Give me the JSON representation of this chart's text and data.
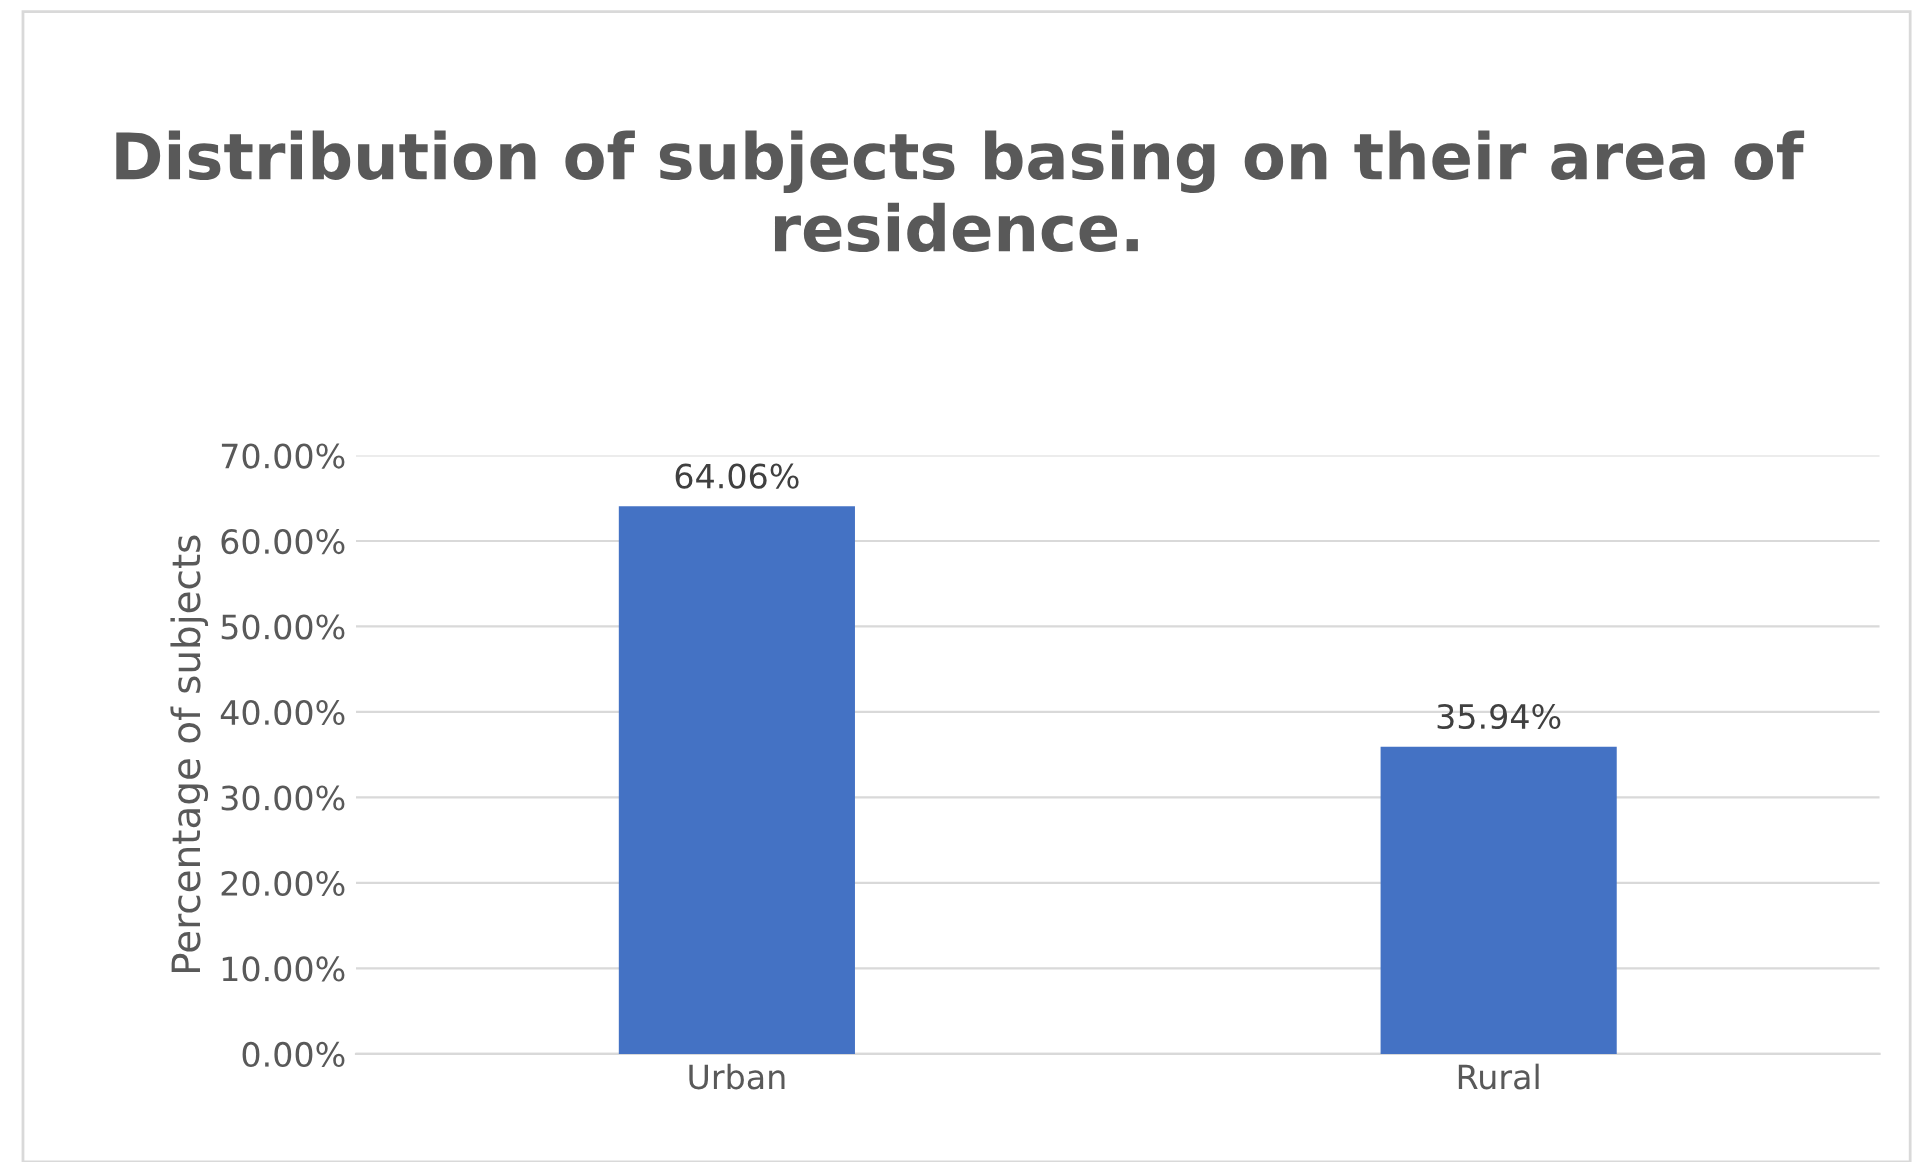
{
  "chart_data": {
    "type": "bar",
    "title": "Distribution of subjects basing on their area of residence.",
    "ylabel": "Percentage of subjects",
    "categories": [
      "Urban",
      "Rural"
    ],
    "values": [
      64.06,
      35.94
    ],
    "color": "#4472c4",
    "value_labels": [
      "64.06%",
      "35.94%"
    ],
    "ylim": [
      0,
      70
    ],
    "yticks": [
      {
        "value": 0,
        "label": "0.00%"
      },
      {
        "value": 10,
        "label": "10.00%"
      },
      {
        "value": 20,
        "label": "20.00%"
      },
      {
        "value": 30,
        "label": "30.00%"
      },
      {
        "value": 40,
        "label": "40.00%"
      },
      {
        "value": 50,
        "label": "50.00%"
      },
      {
        "value": 60,
        "label": "60.00%"
      },
      {
        "value": 70,
        "label": "70.00%"
      }
    ],
    "grid": "y"
  }
}
